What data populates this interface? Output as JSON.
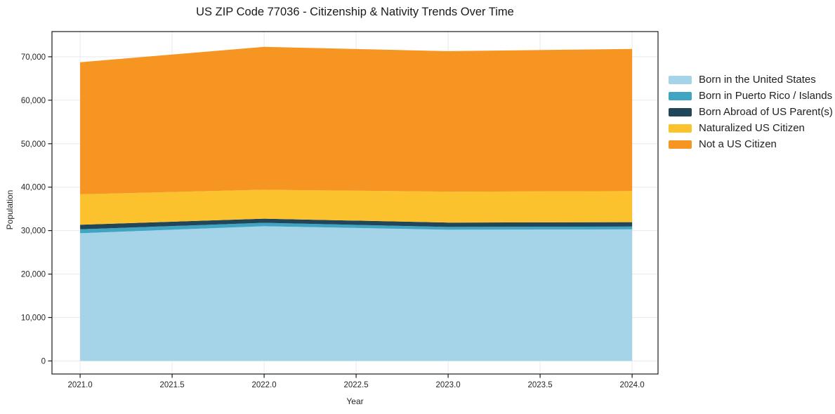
{
  "chart_data": {
    "type": "area",
    "stacked": true,
    "title": "US ZIP Code 77036 - Citizenship & Nativity Trends Over Time",
    "xlabel": "Year",
    "ylabel": "Population",
    "x": [
      2021,
      2022,
      2023,
      2024
    ],
    "series": [
      {
        "name": "Born in the United States",
        "color": "#a5d3e8",
        "values": [
          29400,
          31000,
          30200,
          30300
        ]
      },
      {
        "name": "Born in Puerto Rico / Islands",
        "color": "#3fa5c2",
        "values": [
          900,
          800,
          650,
          650
        ]
      },
      {
        "name": "Born Abroad of US Parent(s)",
        "color": "#21465a",
        "values": [
          1050,
          950,
          1000,
          1000
        ]
      },
      {
        "name": "Naturalized US Citizen",
        "color": "#fcc22d",
        "values": [
          7000,
          6650,
          7100,
          7150
        ]
      },
      {
        "name": "Not a US Citizen",
        "color": "#f79522",
        "values": [
          30400,
          32900,
          32350,
          32700
        ]
      }
    ],
    "totals": [
      68750,
      72300,
      71300,
      71800
    ],
    "xlim": [
      2020.847,
      2024.141
    ],
    "ylim": [
      -3000,
      75800
    ],
    "xticks": {
      "values": [
        2021.0,
        2021.5,
        2022.0,
        2022.5,
        2023.0,
        2023.5,
        2024.0
      ],
      "labels": [
        "2021.0",
        "2021.5",
        "2022.0",
        "2022.5",
        "2023.0",
        "2023.5",
        "2024.0"
      ]
    },
    "yticks": {
      "values": [
        0,
        10000,
        20000,
        30000,
        40000,
        50000,
        60000,
        70000
      ],
      "labels": [
        "0",
        "10,000",
        "20,000",
        "30,000",
        "40,000",
        "50,000",
        "60,000",
        "70,000"
      ]
    },
    "grid": true,
    "legend_position": "right",
    "colors": {
      "grid": "#e9e9ec",
      "frame": "#1a1a1a",
      "tick_text": "#262626"
    }
  }
}
